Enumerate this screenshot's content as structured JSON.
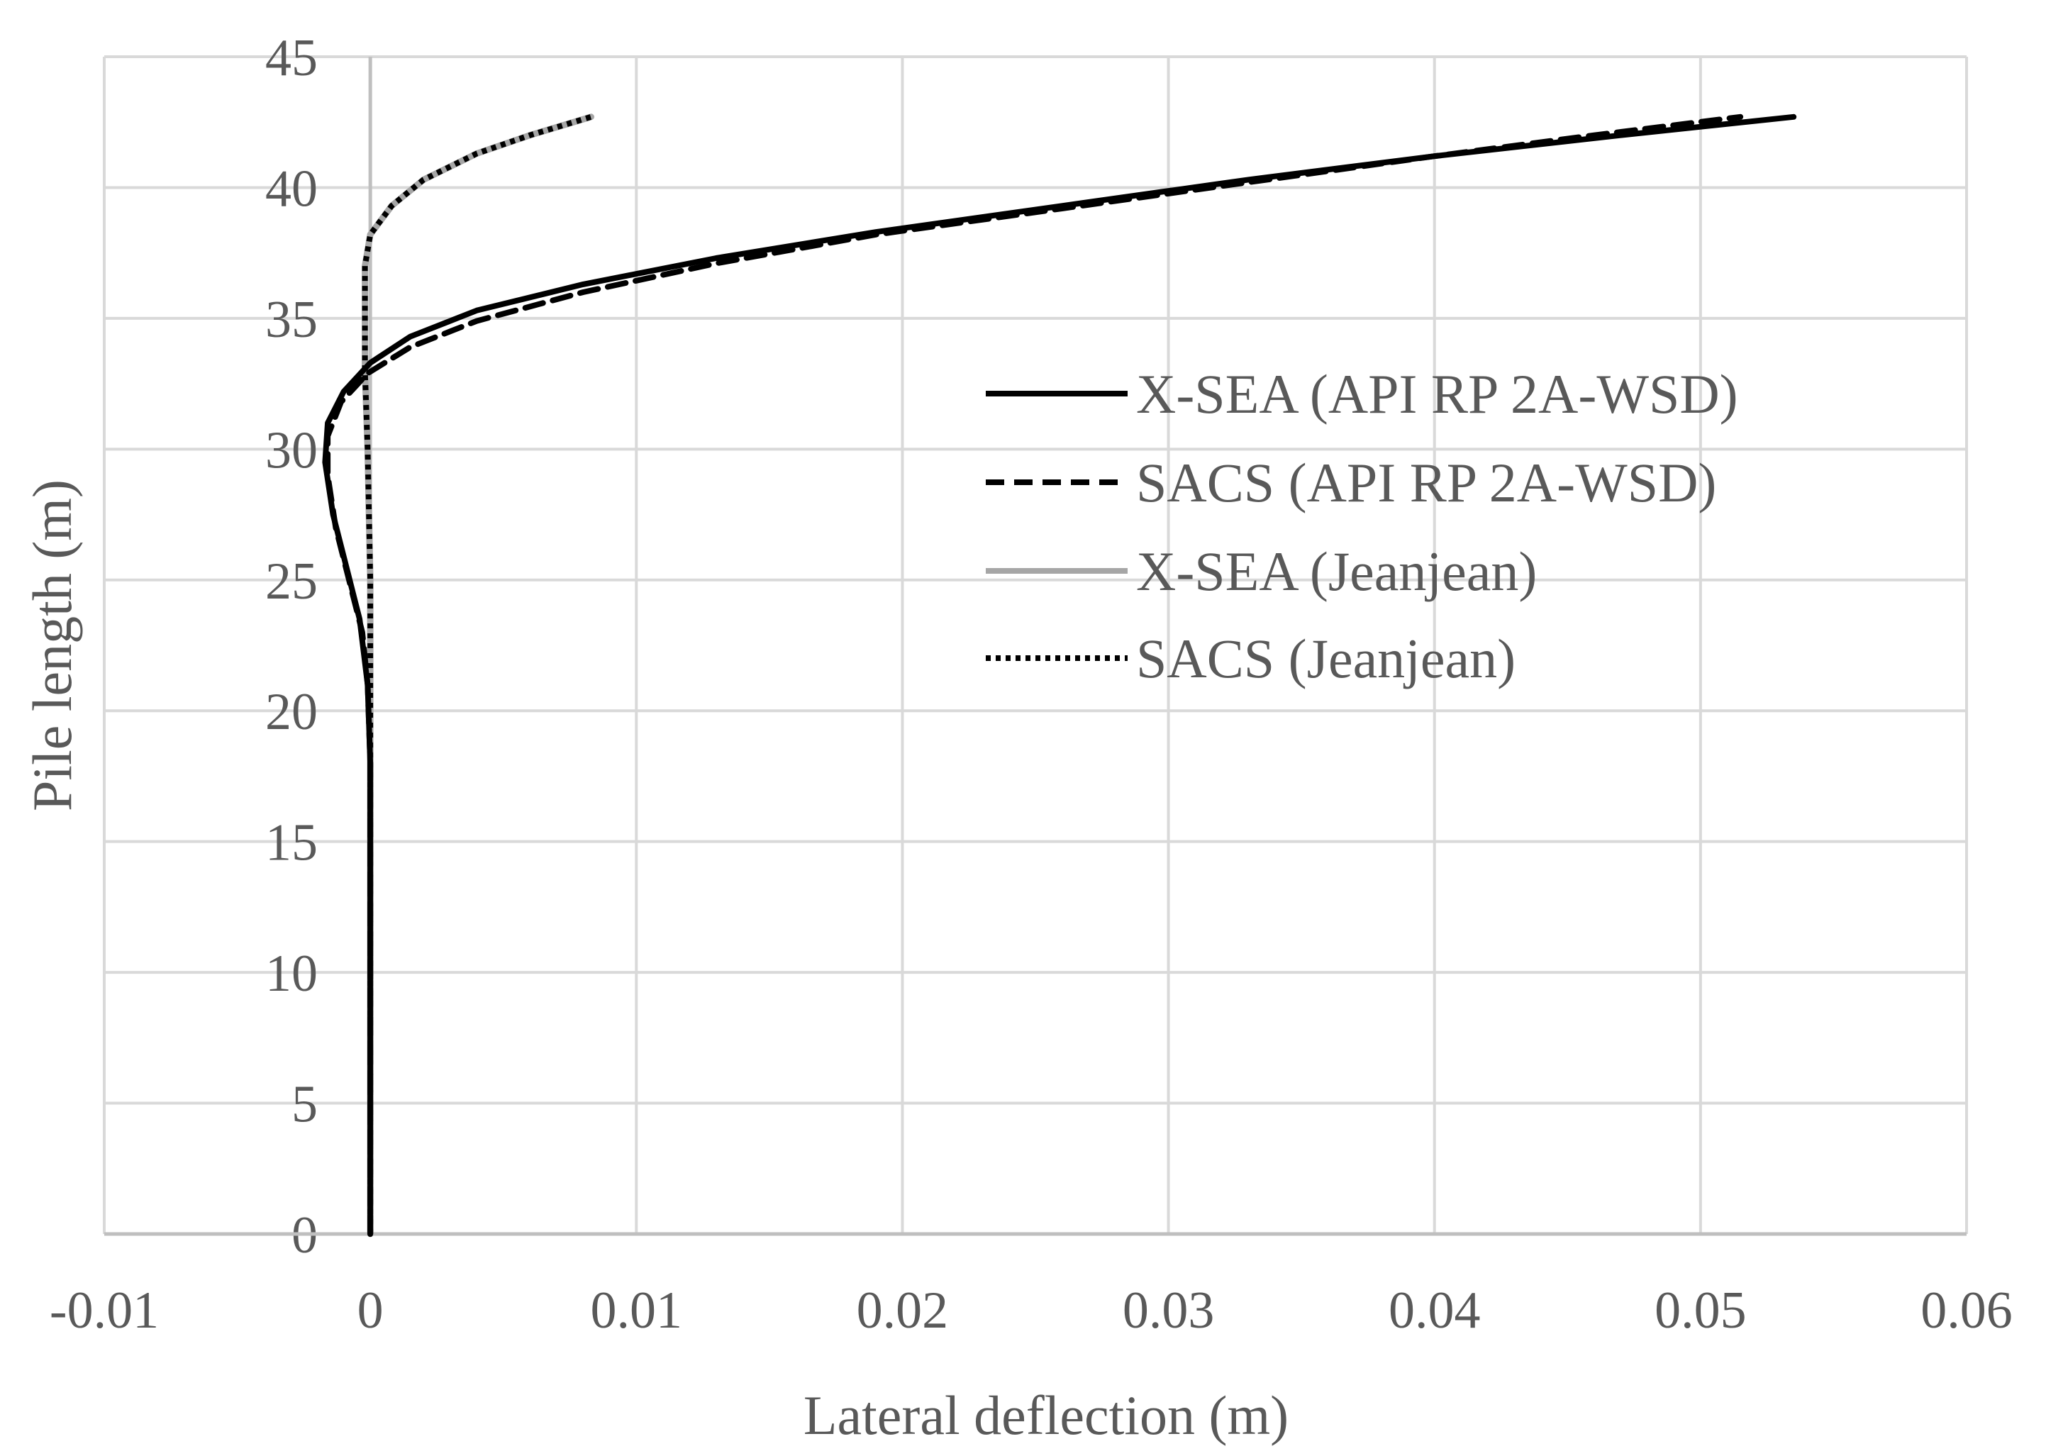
{
  "chart_data": {
    "type": "line",
    "title": "",
    "xlabel": "Lateral deflection (m)",
    "ylabel": "Pile length (m)",
    "xlim": [
      -0.01,
      0.06
    ],
    "ylim": [
      0,
      45
    ],
    "xticks": [
      -0.01,
      0,
      0.01,
      0.02,
      0.03,
      0.04,
      0.05,
      0.06
    ],
    "xtick_labels": [
      "-0.01",
      "0",
      "0.01",
      "0.02",
      "0.03",
      "0.04",
      "0.05",
      "0.06"
    ],
    "yticks": [
      0,
      5,
      10,
      15,
      20,
      25,
      30,
      35,
      40,
      45
    ],
    "ytick_labels": [
      "0",
      "5",
      "10",
      "15",
      "20",
      "25",
      "30",
      "35",
      "40",
      "45"
    ],
    "grid": true,
    "legend_position": "right",
    "series": [
      {
        "name": "X-SEA (API RP 2A-WSD)",
        "color": "#000000",
        "style": "solid",
        "points": [
          [
            0,
            0
          ],
          [
            0,
            10
          ],
          [
            0,
            18
          ],
          [
            -0.0001,
            21
          ],
          [
            -0.0004,
            23.5
          ],
          [
            -0.0009,
            25.5
          ],
          [
            -0.0014,
            27.5
          ],
          [
            -0.0017,
            29.5
          ],
          [
            -0.0016,
            31
          ],
          [
            -0.001,
            32.2
          ],
          [
            0.0,
            33.3
          ],
          [
            0.0015,
            34.3
          ],
          [
            0.004,
            35.3
          ],
          [
            0.008,
            36.3
          ],
          [
            0.013,
            37.3
          ],
          [
            0.019,
            38.3
          ],
          [
            0.026,
            39.3
          ],
          [
            0.033,
            40.3
          ],
          [
            0.04,
            41.2
          ],
          [
            0.047,
            42.0
          ],
          [
            0.0535,
            42.7
          ]
        ]
      },
      {
        "name": "SACS (API RP 2A-WSD)",
        "color": "#000000",
        "style": "dashed",
        "points": [
          [
            0,
            0
          ],
          [
            0,
            10
          ],
          [
            0,
            18
          ],
          [
            -0.0001,
            21
          ],
          [
            -0.0003,
            23
          ],
          [
            -0.0008,
            25
          ],
          [
            -0.0013,
            27
          ],
          [
            -0.0016,
            29
          ],
          [
            -0.0016,
            30.5
          ],
          [
            -0.0011,
            31.8
          ],
          [
            -0.0001,
            32.9
          ],
          [
            0.0015,
            33.9
          ],
          [
            0.004,
            34.9
          ],
          [
            0.008,
            36.0
          ],
          [
            0.013,
            37.1
          ],
          [
            0.019,
            38.2
          ],
          [
            0.026,
            39.2
          ],
          [
            0.033,
            40.2
          ],
          [
            0.04,
            41.2
          ],
          [
            0.046,
            42.0
          ],
          [
            0.0515,
            42.7
          ]
        ]
      },
      {
        "name": "X-SEA (Jeanjean)",
        "color": "#a6a6a6",
        "style": "solid",
        "points": [
          [
            0,
            0
          ],
          [
            0,
            10
          ],
          [
            0,
            20
          ],
          [
            0,
            25
          ],
          [
            -0.0001,
            30
          ],
          [
            -0.0002,
            33
          ],
          [
            -0.0002,
            35
          ],
          [
            -0.0002,
            37
          ],
          [
            0.0,
            38.2
          ],
          [
            0.0008,
            39.3
          ],
          [
            0.002,
            40.3
          ],
          [
            0.004,
            41.3
          ],
          [
            0.006,
            42.0
          ],
          [
            0.0083,
            42.7
          ]
        ]
      },
      {
        "name": "SACS (Jeanjean)",
        "color": "#000000",
        "style": "dotted",
        "points": [
          [
            0,
            0
          ],
          [
            0,
            10
          ],
          [
            0,
            20
          ],
          [
            0,
            25
          ],
          [
            -0.0001,
            30
          ],
          [
            -0.0002,
            33
          ],
          [
            -0.0002,
            35
          ],
          [
            -0.0002,
            37
          ],
          [
            0.0,
            38.2
          ],
          [
            0.0008,
            39.3
          ],
          [
            0.002,
            40.3
          ],
          [
            0.004,
            41.3
          ],
          [
            0.006,
            42.0
          ],
          [
            0.0083,
            42.7
          ]
        ]
      }
    ]
  }
}
